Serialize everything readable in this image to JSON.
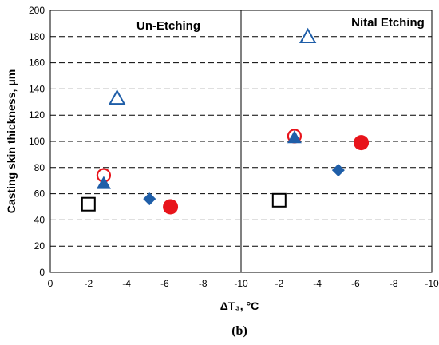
{
  "chart_data": {
    "type": "scatter",
    "xlabel": "ΔT₃, °C",
    "ylabel": "Casting skin thickness, μm",
    "ylim": [
      0,
      200
    ],
    "yticks": [
      "0",
      "20",
      "40",
      "60",
      "80",
      "100",
      "120",
      "140",
      "160",
      "180",
      "200"
    ],
    "grid": "horizontal dashed",
    "caption": "(b)",
    "panels": [
      {
        "title": "Un-Etching",
        "xlim": [
          0,
          -10
        ],
        "xticks": [
          "0",
          "-2",
          "-4",
          "-6",
          "-8",
          "-10"
        ],
        "series": [
          {
            "marker": "open-square",
            "color": "#000000",
            "points": [
              {
                "x": -2.0,
                "y": 52
              }
            ]
          },
          {
            "marker": "open-circle",
            "color": "#e8141b",
            "points": [
              {
                "x": -2.8,
                "y": 74
              }
            ]
          },
          {
            "marker": "filled-triangle",
            "color": "#1f5ea8",
            "points": [
              {
                "x": -2.8,
                "y": 68
              }
            ]
          },
          {
            "marker": "open-triangle",
            "color": "#1f5ea8",
            "points": [
              {
                "x": -3.5,
                "y": 133
              }
            ]
          },
          {
            "marker": "filled-diamond",
            "color": "#1f5ea8",
            "points": [
              {
                "x": -5.2,
                "y": 56
              }
            ]
          },
          {
            "marker": "filled-circle",
            "color": "#e8141b",
            "points": [
              {
                "x": -6.3,
                "y": 50
              }
            ]
          }
        ]
      },
      {
        "title": "Nital Etching",
        "xlim": [
          0,
          -10
        ],
        "xticks": [
          "",
          "-2",
          "-4",
          "-6",
          "-8",
          "-10"
        ],
        "series": [
          {
            "marker": "open-square",
            "color": "#000000",
            "points": [
              {
                "x": -2.0,
                "y": 55
              }
            ]
          },
          {
            "marker": "open-circle",
            "color": "#e8141b",
            "points": [
              {
                "x": -2.8,
                "y": 104
              }
            ]
          },
          {
            "marker": "filled-triangle",
            "color": "#1f5ea8",
            "points": [
              {
                "x": -2.8,
                "y": 103
              }
            ]
          },
          {
            "marker": "open-triangle",
            "color": "#1f5ea8",
            "points": [
              {
                "x": -3.5,
                "y": 180
              }
            ]
          },
          {
            "marker": "filled-diamond",
            "color": "#1f5ea8",
            "points": [
              {
                "x": -5.1,
                "y": 78
              }
            ]
          },
          {
            "marker": "filled-circle",
            "color": "#e8141b",
            "points": [
              {
                "x": -6.3,
                "y": 99
              }
            ]
          }
        ]
      }
    ]
  }
}
